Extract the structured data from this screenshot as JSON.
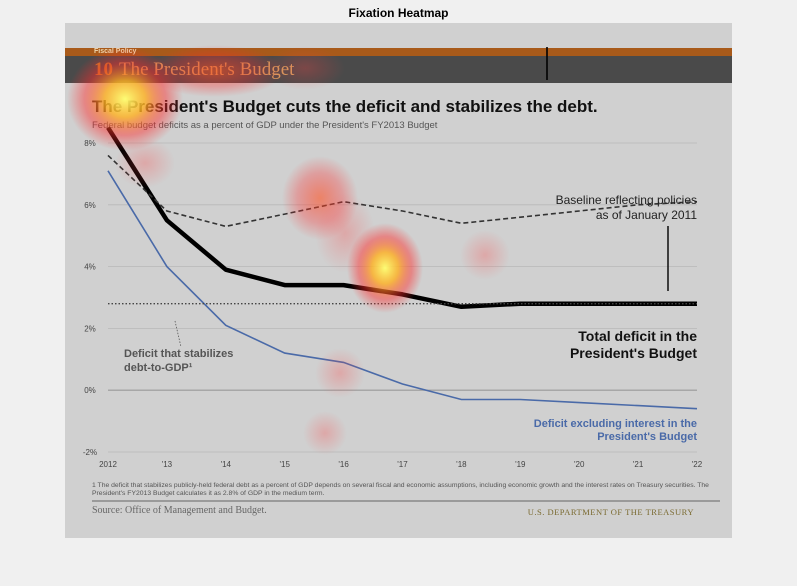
{
  "figure_title": "Fixation Heatmap",
  "header": {
    "kicker": "Fiscal Policy",
    "chapter_number": "10",
    "chapter_title": "The President's Budget"
  },
  "headline": "The President's Budget cuts the deficit and stabilizes the debt.",
  "subtitle": "Federal budget deficits as a percent of GDP under the President's FY2013 Budget",
  "footnote": "1 The deficit that stabilizes publicly-held federal debt as a percent of GDP depends on several fiscal and economic assumptions, including economic growth and the interest rates on Treasury securities. The President's FY2013 Budget calculates it as 2.8% of GDP in the medium term.",
  "source": "Source: Office of Management and Budget.",
  "agency": "U.S. DEPARTMENT OF THE TREASURY",
  "colors": {
    "total": "#000000",
    "baseline": "#333333",
    "excl_interest": "#4a6aa8",
    "stabilizing": "#444444",
    "heat_hot": "#ffff60",
    "heat_mid": "#ff3030"
  },
  "chart_data": {
    "type": "line",
    "x": [
      "2012",
      "'13",
      "'14",
      "'15",
      "'16",
      "'17",
      "'18",
      "'19",
      "'20",
      "'21",
      "'22"
    ],
    "ylim": [
      -2,
      8
    ],
    "yticks": [
      "-2%",
      "0%",
      "2%",
      "4%",
      "6%",
      "8%"
    ],
    "ytick_values": [
      -2,
      0,
      2,
      4,
      6,
      8
    ],
    "grid": true,
    "series": [
      {
        "name": "Total deficit in the President's Budget",
        "style": "solid-thick",
        "values": [
          8.5,
          5.5,
          3.9,
          3.4,
          3.4,
          3.1,
          2.7,
          2.8,
          2.8,
          2.8,
          2.8
        ]
      },
      {
        "name": "Baseline reflecting policies as of January 2011",
        "style": "dashed",
        "values": [
          7.6,
          5.8,
          5.3,
          5.7,
          6.1,
          5.8,
          5.4,
          5.6,
          5.8,
          6.0,
          6.1
        ]
      },
      {
        "name": "Deficit excluding interest in the President's Budget",
        "style": "solid-blue",
        "values": [
          7.1,
          4.0,
          2.1,
          1.2,
          0.9,
          0.2,
          -0.3,
          -0.3,
          -0.4,
          -0.5,
          -0.6
        ]
      },
      {
        "name": "Deficit that stabilizes debt-to-GDP",
        "style": "dotted",
        "values": [
          2.8,
          2.8,
          2.8,
          2.8,
          2.8,
          2.8,
          2.8,
          2.8,
          2.8,
          2.8,
          2.8
        ]
      }
    ],
    "annotations": {
      "baseline": [
        "Baseline reflecting policies",
        "as of January 2011"
      ],
      "total": [
        "Total deficit in the",
        "President's Budget"
      ],
      "stabilizing": [
        "Deficit that stabilizes",
        "debt-to-GDP¹"
      ],
      "excl_interest": [
        "Deficit excluding interest in the",
        "President's Budget"
      ]
    }
  }
}
